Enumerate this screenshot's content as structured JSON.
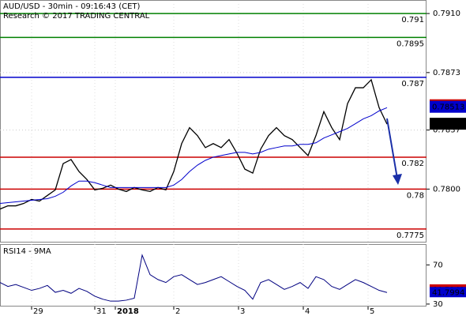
{
  "chart_data": {
    "type": "line",
    "title": "AUD/USD - 30min - 09:16:43 (CET)",
    "subtitle": "Research © 2017 TRADING CENTRAL",
    "x": [
      0,
      5,
      10,
      15,
      20,
      25,
      30,
      35,
      40,
      45,
      50,
      55,
      60,
      65,
      70,
      75,
      80,
      85,
      90,
      95,
      100,
      105,
      110,
      115,
      120,
      125,
      130,
      135,
      140,
      145,
      150,
      155,
      160,
      165,
      170,
      175,
      180,
      185,
      190,
      195,
      200,
      205,
      210,
      215,
      220,
      225,
      230,
      235,
      240,
      245
    ],
    "xlim": [
      0,
      270
    ],
    "xticks": [
      {
        "value": 20,
        "label": "29"
      },
      {
        "value": 60,
        "label": "31"
      },
      {
        "value": 73,
        "label": "2018"
      },
      {
        "value": 110,
        "label": "2"
      },
      {
        "value": 151,
        "label": "3"
      },
      {
        "value": 192,
        "label": "4"
      },
      {
        "value": 233,
        "label": "5"
      }
    ],
    "ylim": [
      0.77675,
      0.7916
    ],
    "yticks": [
      {
        "value": 0.791,
        "label": "0.7910"
      },
      {
        "value": 0.7873,
        "label": "0.7873"
      },
      {
        "value": 0.7837,
        "label": "0.7837"
      },
      {
        "value": 0.78,
        "label": "0.7800"
      }
    ],
    "grid": true,
    "series": [
      {
        "color": "#000000",
        "values": [
          0.77875,
          0.77895,
          0.77895,
          0.7791,
          0.77935,
          0.77925,
          0.7796,
          0.77995,
          0.7816,
          0.78185,
          0.7811,
          0.7806,
          0.77995,
          0.78005,
          0.78025,
          0.78,
          0.77985,
          0.7801,
          0.77995,
          0.77985,
          0.7801,
          0.77995,
          0.7811,
          0.78285,
          0.78385,
          0.78335,
          0.7826,
          0.78285,
          0.7826,
          0.7831,
          0.78225,
          0.78125,
          0.781,
          0.7825,
          0.78335,
          0.78385,
          0.78335,
          0.7831,
          0.7826,
          0.7821,
          0.78335,
          0.78485,
          0.78385,
          0.7831,
          0.78535,
          0.78635,
          0.78635,
          0.78685,
          0.7851,
          0.78407
        ]
      },
      {
        "color": "#0000cc",
        "values": [
          0.7791,
          0.77915,
          0.7792,
          0.77925,
          0.7793,
          0.77935,
          0.7794,
          0.77955,
          0.7798,
          0.7802,
          0.7805,
          0.7805,
          0.7804,
          0.78025,
          0.7801,
          0.7801,
          0.7801,
          0.7801,
          0.7801,
          0.7801,
          0.7801,
          0.7801,
          0.78025,
          0.7806,
          0.7811,
          0.7815,
          0.7818,
          0.782,
          0.7821,
          0.7822,
          0.7823,
          0.7823,
          0.7822,
          0.7823,
          0.7825,
          0.7826,
          0.7827,
          0.7827,
          0.7828,
          0.7828,
          0.7829,
          0.7832,
          0.7834,
          0.7836,
          0.7838,
          0.7841,
          0.7844,
          0.7846,
          0.7849,
          0.7851
        ]
      }
    ],
    "levels": [
      {
        "value": 0.791,
        "color": "#008000"
      },
      {
        "value": 0.7895,
        "color": "#008000"
      },
      {
        "value": 0.787,
        "color": "#0000cc"
      },
      {
        "value": 0.782,
        "color": "#cc0000"
      },
      {
        "value": 0.78,
        "color": "#cc0000"
      },
      {
        "value": 0.7775,
        "color": "#cc0000"
      }
    ],
    "price_tags": [
      {
        "value": 0.78523,
        "color": "#cc0000"
      },
      {
        "value": 0.78513,
        "color": "#0000cc"
      },
      {
        "value": 0.78407,
        "color": "#000000"
      }
    ],
    "rsi": {
      "title": "RSI14 - 9MA",
      "ylim": [
        27.5,
        90.4
      ],
      "yticks": [
        70,
        30
      ],
      "color": "#000080",
      "values": [
        52,
        48,
        50,
        47,
        44,
        46,
        49,
        42,
        44,
        41,
        46,
        43,
        38,
        35,
        33,
        33,
        34,
        36,
        80,
        60,
        55,
        52,
        58,
        60,
        55,
        50,
        52,
        55,
        58,
        53,
        48,
        44,
        35,
        52,
        55,
        50,
        45,
        48,
        52,
        46,
        58,
        55,
        48,
        45,
        50,
        55,
        52,
        48,
        44,
        41.7994
      ],
      "tags": [
        {
          "value": 44.5141,
          "color": "#cc0000"
        },
        {
          "value": 41.7994,
          "color": "#0000cc"
        }
      ]
    }
  }
}
